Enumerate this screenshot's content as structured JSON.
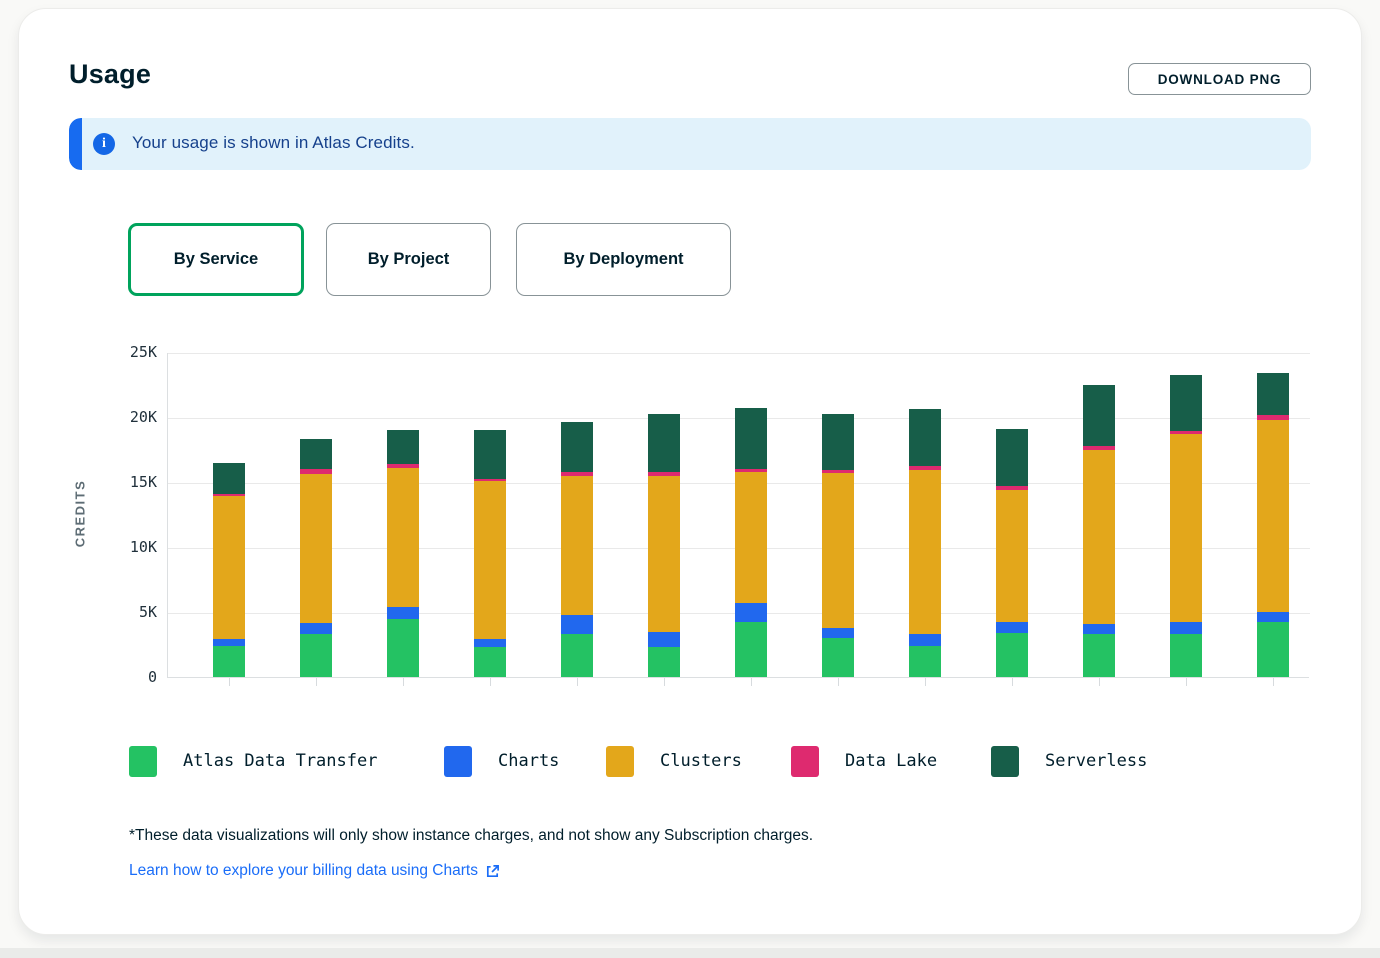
{
  "page": {
    "title": "Usage",
    "download_button": "DOWNLOAD PNG"
  },
  "banner": {
    "text": "Your usage is shown in Atlas Credits.",
    "icon_glyph": "i",
    "accent_color": "#176bf0",
    "background_color": "#e1f2fb",
    "text_color": "#16418c"
  },
  "tabs": [
    {
      "label": "By Service",
      "active": true
    },
    {
      "label": "By Project",
      "active": false
    },
    {
      "label": "By Deployment",
      "active": false
    }
  ],
  "chart_data": {
    "type": "bar",
    "stacked": true,
    "title": "",
    "xlabel": "",
    "ylabel": "CREDITS",
    "ylim": [
      0,
      25000
    ],
    "ytick_labels": [
      "0",
      "5K",
      "10K",
      "15K",
      "20K",
      "25K"
    ],
    "ytick_values": [
      0,
      5000,
      10000,
      15000,
      20000,
      25000
    ],
    "grid": true,
    "num_bars": 13,
    "x_axis_labels_visible": false,
    "legend_position": "bottom",
    "series": [
      {
        "name": "Atlas Data Transfer",
        "color": "#24c263",
        "values": [
          2400,
          3300,
          4500,
          2300,
          3300,
          2300,
          4200,
          3000,
          2400,
          3400,
          3300,
          3300,
          4200
        ]
      },
      {
        "name": "Charts",
        "color": "#2168ee",
        "values": [
          500,
          850,
          900,
          650,
          1450,
          1200,
          1500,
          800,
          900,
          800,
          800,
          900,
          800
        ]
      },
      {
        "name": "Clusters",
        "color": "#e3a71b",
        "values": [
          11000,
          11450,
          10700,
          12100,
          10750,
          12000,
          10100,
          11900,
          12600,
          10200,
          13400,
          14500,
          14800
        ]
      },
      {
        "name": "Data Lake",
        "color": "#de2a6f",
        "values": [
          200,
          400,
          300,
          200,
          300,
          300,
          200,
          200,
          300,
          300,
          300,
          200,
          350
        ]
      },
      {
        "name": "Serverless",
        "color": "#175e49",
        "values": [
          2400,
          2300,
          2600,
          3750,
          3800,
          4400,
          4700,
          4300,
          4400,
          4400,
          4700,
          4300,
          3200
        ]
      }
    ],
    "totals": [
      16500,
      18300,
      19000,
      19000,
      19600,
      20200,
      20700,
      20200,
      20600,
      19100,
      22500,
      23200,
      23350
    ]
  },
  "footnote": "*These data visualizations will only show instance charges, and not show any Subscription charges.",
  "link": {
    "text": "Learn how to explore your billing data using Charts",
    "icon": "external-link-icon",
    "color": "#1a6df8"
  }
}
